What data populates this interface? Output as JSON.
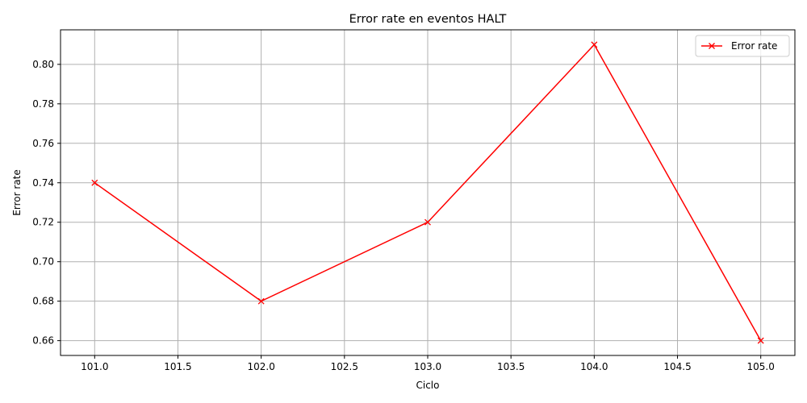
{
  "chart_data": {
    "type": "line",
    "title": "Error rate en eventos HALT",
    "xlabel": "Ciclo",
    "ylabel": "Error rate",
    "x": [
      101.0,
      102.0,
      103.0,
      104.0,
      105.0
    ],
    "series": [
      {
        "name": "Error rate",
        "values": [
          0.74,
          0.68,
          0.72,
          0.81,
          0.66
        ],
        "color": "#ff0000",
        "marker": "x"
      }
    ],
    "xlim": [
      100.795,
      105.205
    ],
    "ylim": [
      0.6525,
      0.8175
    ],
    "xticks": [
      101.0,
      101.5,
      102.0,
      102.5,
      103.0,
      103.5,
      104.0,
      104.5,
      105.0
    ],
    "xtick_labels": [
      "101.0",
      "101.5",
      "102.0",
      "102.5",
      "103.0",
      "103.5",
      "104.0",
      "104.5",
      "105.0"
    ],
    "yticks": [
      0.66,
      0.68,
      0.7,
      0.72,
      0.74,
      0.76,
      0.78,
      0.8
    ],
    "ytick_labels": [
      "0.66",
      "0.68",
      "0.70",
      "0.72",
      "0.74",
      "0.76",
      "0.78",
      "0.80"
    ],
    "grid": true,
    "legend_position": "top-right",
    "grid_color": "#b0b0b0",
    "axis_color": "#000000"
  }
}
